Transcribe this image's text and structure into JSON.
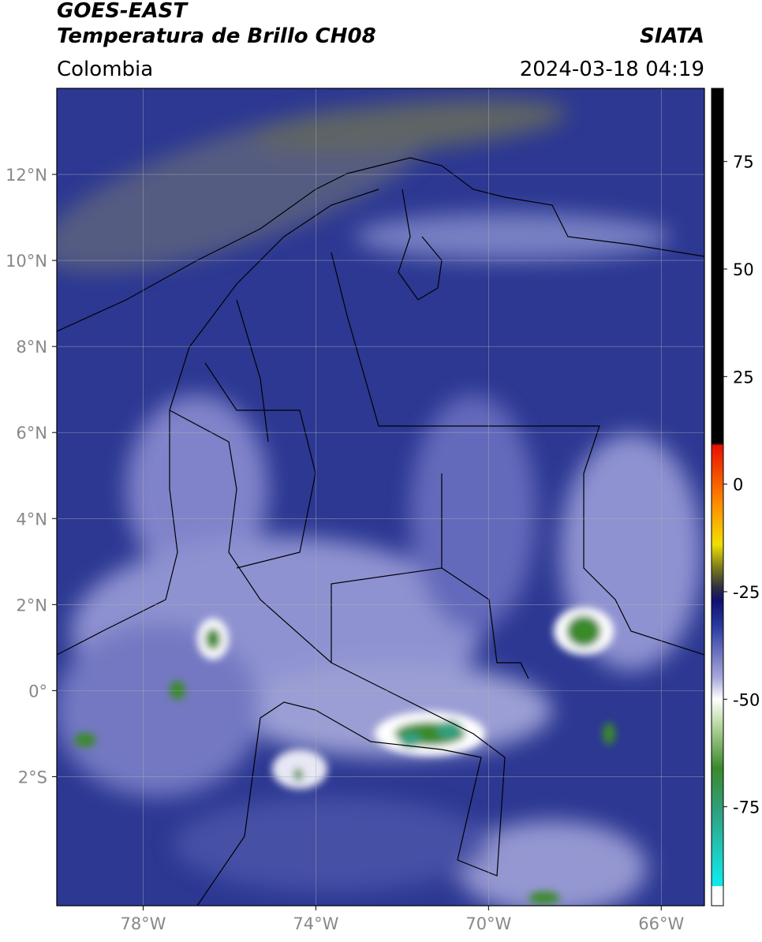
{
  "header": {
    "title": "GOES-EAST",
    "subtitle": "Temperatura de Brillo CH08",
    "source": "SIATA",
    "region": "Colombia",
    "datetime": "2024-03-18 04:19"
  },
  "map": {
    "xlim": [
      -80,
      -65
    ],
    "ylim": [
      -5,
      14
    ],
    "xticks": [
      {
        "value": -78,
        "label": "78°W"
      },
      {
        "value": -74,
        "label": "74°W"
      },
      {
        "value": -70,
        "label": "70°W"
      },
      {
        "value": -66,
        "label": "66°W"
      }
    ],
    "yticks": [
      {
        "value": 12,
        "label": "12°N"
      },
      {
        "value": 10,
        "label": "10°N"
      },
      {
        "value": 8,
        "label": "8°N"
      },
      {
        "value": 6,
        "label": "6°N"
      },
      {
        "value": 4,
        "label": "4°N"
      },
      {
        "value": 2,
        "label": "2°N"
      },
      {
        "value": 0,
        "label": "0°"
      },
      {
        "value": -2,
        "label": "2°S"
      }
    ],
    "grid": true
  },
  "colorbar": {
    "lim": [
      -98,
      92
    ],
    "ticks": [
      75,
      50,
      25,
      0,
      -25,
      -50,
      -75
    ],
    "colormap": [
      {
        "value": 92,
        "color": "#000000"
      },
      {
        "value": 9.5,
        "color": "#000000"
      },
      {
        "value": 9,
        "color": "#e81000"
      },
      {
        "value": -5,
        "color": "#ff9000"
      },
      {
        "value": -14,
        "color": "#f0e000"
      },
      {
        "value": -20,
        "color": "#707020"
      },
      {
        "value": -24,
        "color": "#303040"
      },
      {
        "value": -27,
        "color": "#101070"
      },
      {
        "value": -33,
        "color": "#2a3aa0"
      },
      {
        "value": -45,
        "color": "#a8a8dc"
      },
      {
        "value": -50,
        "color": "#ffffff"
      },
      {
        "value": -56,
        "color": "#b8d8a0"
      },
      {
        "value": -66,
        "color": "#3a8a2a"
      },
      {
        "value": -76,
        "color": "#30a080"
      },
      {
        "value": -92,
        "color": "#10e8e8"
      },
      {
        "value": -93.4,
        "color": "#10e8e8"
      },
      {
        "value": -93.5,
        "color": "#ffffff"
      },
      {
        "value": -98,
        "color": "#ffffff"
      }
    ]
  }
}
